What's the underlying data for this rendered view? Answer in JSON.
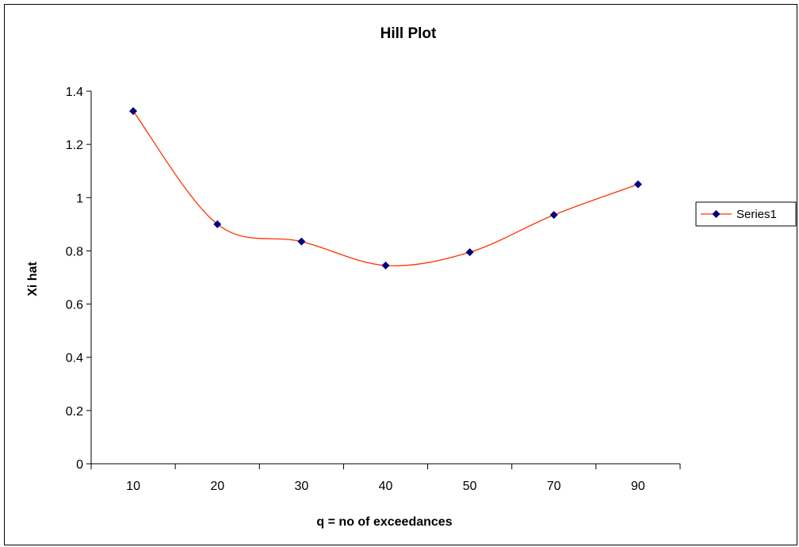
{
  "chart_data": {
    "type": "line",
    "title": "Hill Plot",
    "xlabel": "q = no of exceedances",
    "ylabel": "Xi hat",
    "categories": [
      "10",
      "20",
      "30",
      "40",
      "50",
      "70",
      "90"
    ],
    "series": [
      {
        "name": "Series1",
        "values": [
          1.325,
          0.9,
          0.835,
          0.745,
          0.795,
          0.935,
          1.05
        ],
        "line_color": "#ff3300",
        "marker_color": "#000080",
        "marker": "diamond"
      }
    ],
    "ylim": [
      0,
      1.4
    ],
    "ystep": 0.2,
    "y_ticks": [
      "0",
      "0.2",
      "0.4",
      "0.6",
      "0.8",
      "1",
      "1.2",
      "1.4"
    ],
    "smooth": true,
    "grid": false,
    "legend_position": "right"
  }
}
